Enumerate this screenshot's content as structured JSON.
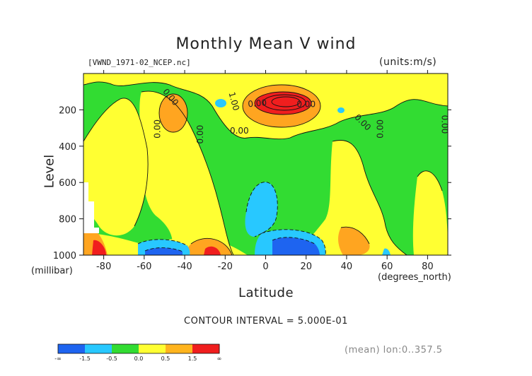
{
  "chart_data": {
    "type": "heatmap",
    "title": "Monthly Mean V wind",
    "file_label": "[VWND_1971-02_NCEP.nc]",
    "units_label": "(units:m/s)",
    "xlabel": "Latitude",
    "x_unit": "(degrees_north)",
    "ylabel": "Level",
    "y_unit": "(millibar)",
    "xlim": [
      -90,
      90
    ],
    "ylim": [
      1000,
      0
    ],
    "x_ticks": [
      -80,
      -60,
      -40,
      -20,
      0,
      20,
      40,
      60,
      80
    ],
    "y_ticks": [
      200,
      400,
      600,
      800,
      1000
    ],
    "contour_interval_text": "CONTOUR INTERVAL = 5.000E-01",
    "contour_labels": [
      "0.00",
      "1.00",
      "0.00",
      "0.00",
      "0.00",
      "0.00",
      "0.00",
      "0.00",
      "0.00",
      "0.00"
    ],
    "footer": "(mean) lon:0..357.5",
    "colorbar": {
      "labels": [
        "-∞",
        "-1.5",
        "-0.5",
        "0.0",
        "0.5",
        "1.5",
        "∞"
      ],
      "colors": [
        "#1e64f0",
        "#1e64f0",
        "#28c8ff",
        "#28c8ff",
        "#32dc32",
        "#32dc32",
        "#ffff32",
        "#ffff32",
        "#ffb41e",
        "#ffb41e",
        "#f01e1e",
        "#f01e1e"
      ]
    },
    "colors": {
      "blue": "#1e64f0",
      "cyan": "#28c8ff",
      "green": "#32dc32",
      "yellow": "#ffff32",
      "orange": "#ffa520",
      "red": "#f01e1e"
    }
  }
}
